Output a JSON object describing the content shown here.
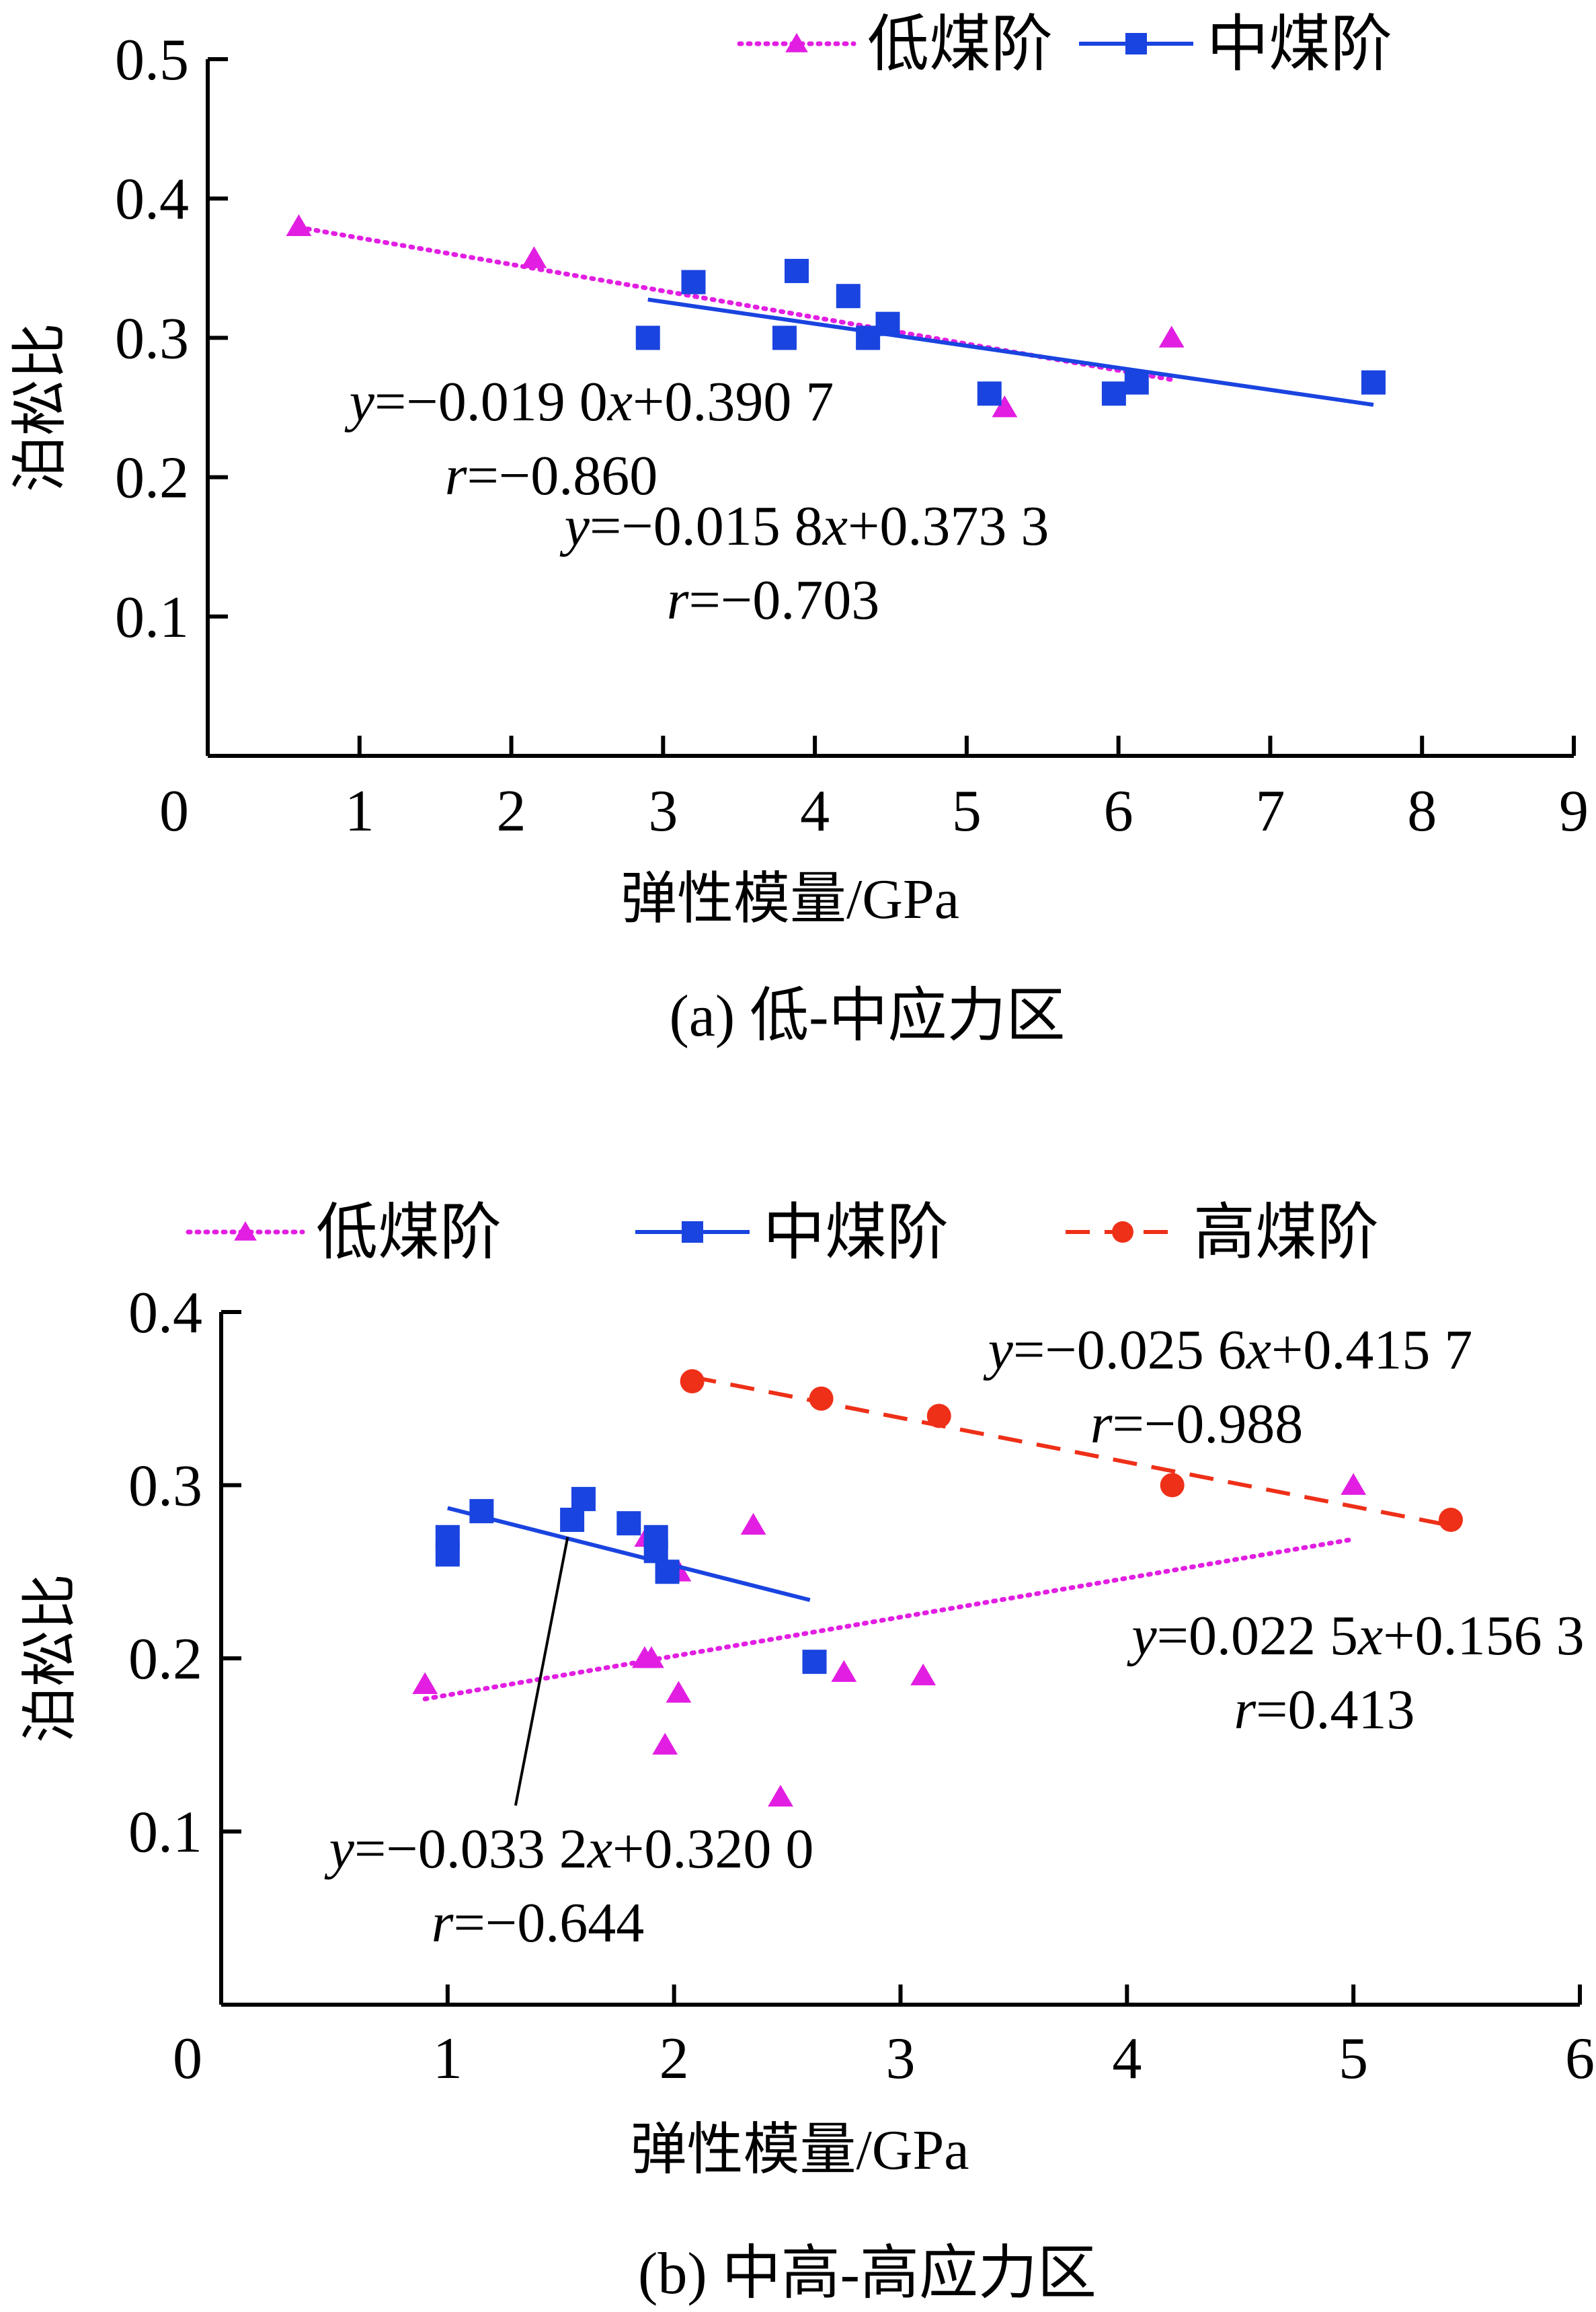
{
  "chart_data": [
    {
      "type": "scatter",
      "caption": "(a)  低-中应力区",
      "xlabel": "弹性模量/GPa",
      "ylabel": "泊松比",
      "xlim": [
        0,
        9
      ],
      "ylim": [
        0,
        0.5
      ],
      "xticks": [
        "0",
        "1",
        "2",
        "3",
        "4",
        "5",
        "6",
        "7",
        "8",
        "9"
      ],
      "yticks": [
        "0.1",
        "0.2",
        "0.3",
        "0.4",
        "0.5"
      ],
      "legend_position": "top-right",
      "series": [
        {
          "name": "低煤阶",
          "color": "#e21ee2",
          "marker": "triangle",
          "line": "dotted",
          "points": [
            [
              0.6,
              0.38
            ],
            [
              2.15,
              0.357
            ],
            [
              5.25,
              0.25
            ],
            [
              6.35,
              0.3
            ]
          ],
          "fit": {
            "slope": -0.019,
            "intercept": 0.3907,
            "x_range": [
              0.6,
              6.35
            ]
          },
          "equation": "y=−0.019 0x+0.390 7",
          "r": "r=−0.860"
        },
        {
          "name": "中煤阶",
          "color": "#1a44e0",
          "marker": "square",
          "line": "solid",
          "points": [
            [
              2.9,
              0.3
            ],
            [
              3.2,
              0.34
            ],
            [
              3.8,
              0.3
            ],
            [
              3.88,
              0.348
            ],
            [
              4.22,
              0.33
            ],
            [
              4.35,
              0.3
            ],
            [
              4.48,
              0.31
            ],
            [
              5.15,
              0.26
            ],
            [
              5.97,
              0.26
            ],
            [
              6.12,
              0.268
            ],
            [
              7.68,
              0.268
            ]
          ],
          "fit": {
            "slope": -0.0158,
            "intercept": 0.3733,
            "x_range": [
              2.9,
              7.68
            ]
          },
          "equation": "y=−0.015 8x+0.373 3",
          "r": "r=−0.703"
        }
      ]
    },
    {
      "type": "scatter",
      "caption": "(b)  中高-高应力区",
      "xlabel": "弹性模量/GPa",
      "ylabel": "泊松比",
      "xlim": [
        0,
        6
      ],
      "ylim": [
        0,
        0.4
      ],
      "xticks": [
        "0",
        "1",
        "2",
        "3",
        "4",
        "5",
        "6"
      ],
      "yticks": [
        "0.1",
        "0.2",
        "0.3",
        "0.4"
      ],
      "legend_position": "top",
      "series": [
        {
          "name": "低煤阶",
          "color": "#e21ee2",
          "marker": "triangle",
          "line": "dotted",
          "points": [
            [
              0.9,
              0.185
            ],
            [
              1.88,
              0.27
            ],
            [
              1.87,
              0.2
            ],
            [
              1.9,
              0.2
            ],
            [
              1.96,
              0.15
            ],
            [
              2.02,
              0.18
            ],
            [
              2.02,
              0.25
            ],
            [
              2.35,
              0.277
            ],
            [
              2.47,
              0.12
            ],
            [
              2.75,
              0.192
            ],
            [
              3.1,
              0.19
            ],
            [
              5.0,
              0.3
            ]
          ],
          "fit": {
            "slope": 0.0225,
            "intercept": 0.1563,
            "x_range": [
              0.9,
              5.0
            ]
          },
          "equation": "y=0.022 5x+0.156 3",
          "r": "r=0.413"
        },
        {
          "name": "中煤阶",
          "color": "#1a44e0",
          "marker": "square",
          "line": "solid",
          "points": [
            [
              1.0,
              0.26
            ],
            [
              1.0,
              0.27
            ],
            [
              1.15,
              0.285
            ],
            [
              1.55,
              0.28
            ],
            [
              1.6,
              0.292
            ],
            [
              1.8,
              0.278
            ],
            [
              1.92,
              0.27
            ],
            [
              1.92,
              0.262
            ],
            [
              1.97,
              0.25
            ],
            [
              2.62,
              0.198
            ]
          ],
          "fit": {
            "slope": -0.0332,
            "intercept": 0.32,
            "x_range": [
              1.0,
              2.6
            ]
          },
          "equation": "y=−0.033 2x+0.320 0",
          "r": "r=−0.644"
        },
        {
          "name": "高煤阶",
          "color": "#ee3018",
          "marker": "circle",
          "line": "dashed",
          "points": [
            [
              2.08,
              0.36
            ],
            [
              2.65,
              0.35
            ],
            [
              3.17,
              0.34
            ],
            [
              4.2,
              0.3
            ],
            [
              5.43,
              0.28
            ]
          ],
          "fit": {
            "slope": -0.0256,
            "intercept": 0.4157,
            "x_range": [
              2.08,
              5.43
            ]
          },
          "equation": "y=−0.025 6x+0.415 7",
          "r": "r=−0.988"
        }
      ]
    }
  ]
}
